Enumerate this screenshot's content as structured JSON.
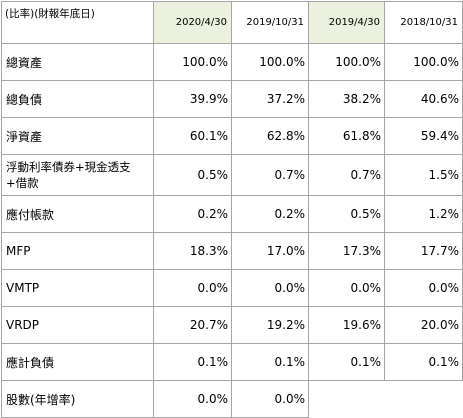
{
  "table": {
    "header": {
      "label": "(比率)(財報年底日)",
      "dates": [
        "2020/4/30",
        "2019/10/31",
        "2019/4/30",
        "2018/10/31"
      ]
    },
    "rows": [
      {
        "label": "總資產",
        "values": [
          "100.0%",
          "100.0%",
          "100.0%",
          "100.0%"
        ]
      },
      {
        "label": "總負債",
        "values": [
          "39.9%",
          "37.2%",
          "38.2%",
          "40.6%"
        ]
      },
      {
        "label": "淨資產",
        "values": [
          "60.1%",
          "62.8%",
          "61.8%",
          "59.4%"
        ]
      },
      {
        "label": "浮動利率債券+現金透支+借款",
        "values": [
          "0.5%",
          "0.7%",
          "0.7%",
          "1.5%"
        ]
      },
      {
        "label": "應付帳款",
        "values": [
          "0.2%",
          "0.2%",
          "0.5%",
          "1.2%"
        ]
      },
      {
        "label": "MFP",
        "values": [
          "18.3%",
          "17.0%",
          "17.3%",
          "17.7%"
        ]
      },
      {
        "label": "VMTP",
        "values": [
          "0.0%",
          "0.0%",
          "0.0%",
          "0.0%"
        ]
      },
      {
        "label": "VRDP",
        "values": [
          "20.7%",
          "19.2%",
          "19.6%",
          "20.0%"
        ]
      },
      {
        "label": "應計負債",
        "values": [
          "0.1%",
          "0.1%",
          "0.1%",
          "0.1%"
        ]
      },
      {
        "label": "股數(年增率)",
        "values": [
          "0.0%",
          "0.0%",
          "",
          ""
        ]
      }
    ]
  },
  "colors": {
    "header_highlight": "#ebf1de",
    "grid_line": "#a6a6a6"
  }
}
